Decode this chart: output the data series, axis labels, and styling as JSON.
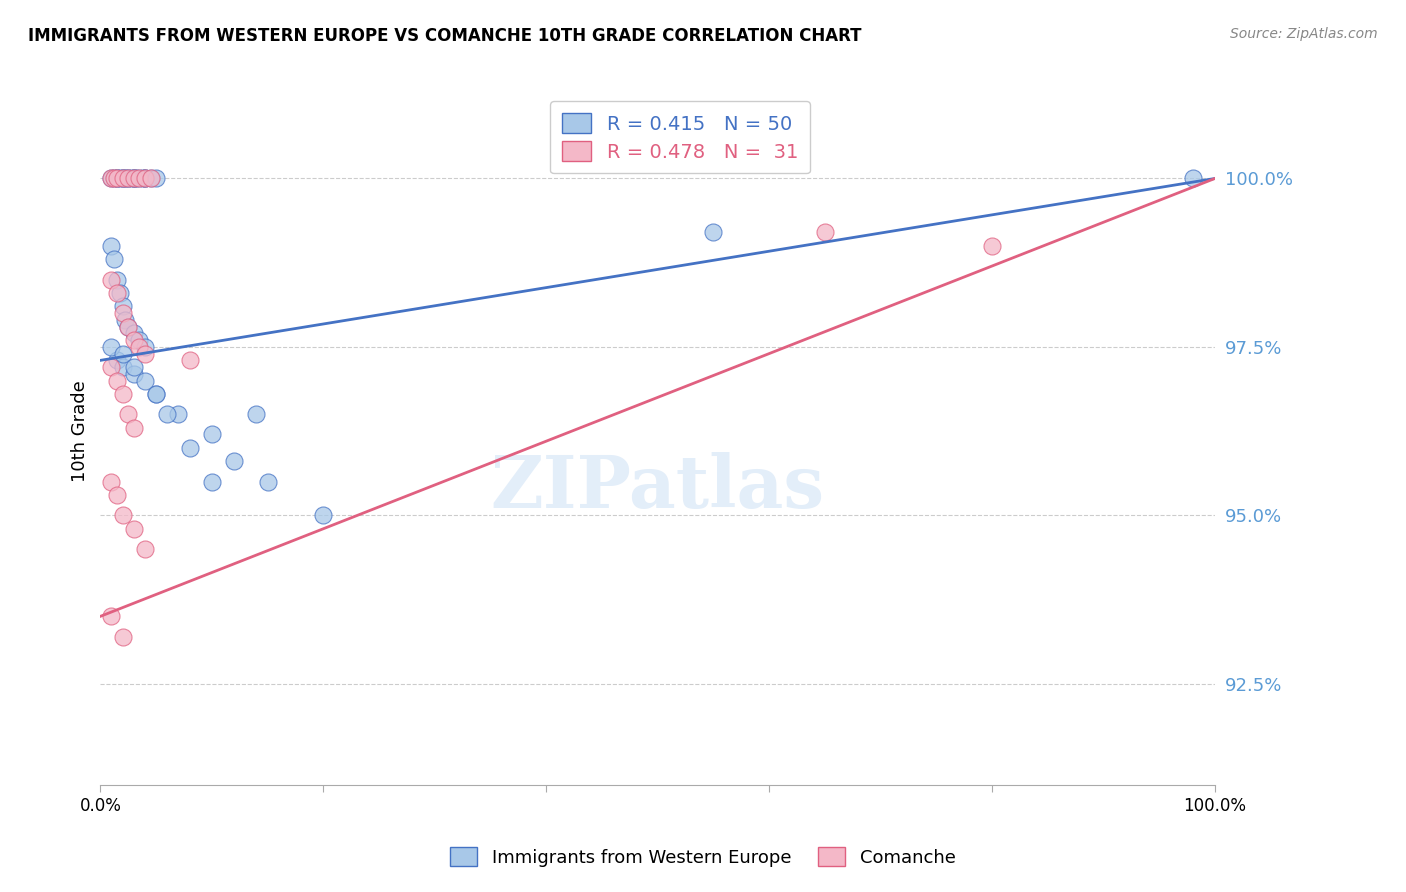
{
  "title": "IMMIGRANTS FROM WESTERN EUROPE VS COMANCHE 10TH GRADE CORRELATION CHART",
  "source": "Source: ZipAtlas.com",
  "ylabel": "10th Grade",
  "yticks": [
    92.5,
    95.0,
    97.5,
    100.0
  ],
  "ytick_labels": [
    "92.5%",
    "95.0%",
    "97.5%",
    "100.0%"
  ],
  "xlim": [
    0.0,
    100.0
  ],
  "ylim": [
    91.0,
    101.5
  ],
  "blue_R": 0.415,
  "blue_N": 50,
  "pink_R": 0.478,
  "pink_N": 31,
  "blue_color": "#a8c8e8",
  "pink_color": "#f4b8c8",
  "blue_line_color": "#4472c4",
  "pink_line_color": "#e06080",
  "legend_label_blue": "Immigrants from Western Europe",
  "legend_label_pink": "Comanche",
  "blue_x": [
    1.0,
    1.2,
    1.5,
    1.5,
    1.8,
    2.0,
    2.0,
    2.2,
    2.5,
    2.5,
    2.8,
    3.0,
    3.0,
    3.2,
    3.5,
    3.8,
    4.0,
    4.0,
    4.5,
    5.0,
    1.0,
    1.2,
    1.5,
    1.8,
    2.0,
    2.2,
    2.5,
    3.0,
    3.5,
    4.0,
    1.5,
    2.0,
    3.0,
    5.0,
    7.0,
    10.0,
    12.0,
    15.0,
    20.0,
    1.0,
    2.0,
    3.0,
    4.0,
    5.0,
    6.0,
    8.0,
    10.0,
    14.0,
    55.0,
    98.0
  ],
  "blue_y": [
    100.0,
    100.0,
    100.0,
    100.0,
    100.0,
    100.0,
    100.0,
    100.0,
    100.0,
    100.0,
    100.0,
    100.0,
    100.0,
    100.0,
    100.0,
    100.0,
    100.0,
    100.0,
    100.0,
    100.0,
    99.0,
    98.8,
    98.5,
    98.3,
    98.1,
    97.9,
    97.8,
    97.7,
    97.6,
    97.5,
    97.3,
    97.2,
    97.1,
    96.8,
    96.5,
    96.2,
    95.8,
    95.5,
    95.0,
    97.5,
    97.4,
    97.2,
    97.0,
    96.8,
    96.5,
    96.0,
    95.5,
    96.5,
    99.2,
    100.0
  ],
  "pink_x": [
    1.0,
    1.2,
    1.5,
    2.0,
    2.5,
    3.0,
    3.5,
    4.0,
    4.5,
    1.0,
    1.5,
    2.0,
    2.5,
    3.0,
    3.5,
    4.0,
    1.0,
    1.5,
    2.0,
    2.5,
    3.0,
    1.0,
    1.5,
    2.0,
    3.0,
    4.0,
    8.0,
    1.0,
    2.0,
    65.0,
    80.0
  ],
  "pink_y": [
    100.0,
    100.0,
    100.0,
    100.0,
    100.0,
    100.0,
    100.0,
    100.0,
    100.0,
    98.5,
    98.3,
    98.0,
    97.8,
    97.6,
    97.5,
    97.4,
    97.2,
    97.0,
    96.8,
    96.5,
    96.3,
    95.5,
    95.3,
    95.0,
    94.8,
    94.5,
    97.3,
    93.5,
    93.2,
    99.2,
    99.0
  ],
  "blue_trendline_x0": 0.0,
  "blue_trendline_y0": 97.3,
  "blue_trendline_x1": 100.0,
  "blue_trendline_y1": 100.0,
  "pink_trendline_x0": 0.0,
  "pink_trendline_y0": 93.5,
  "pink_trendline_x1": 100.0,
  "pink_trendline_y1": 100.0
}
